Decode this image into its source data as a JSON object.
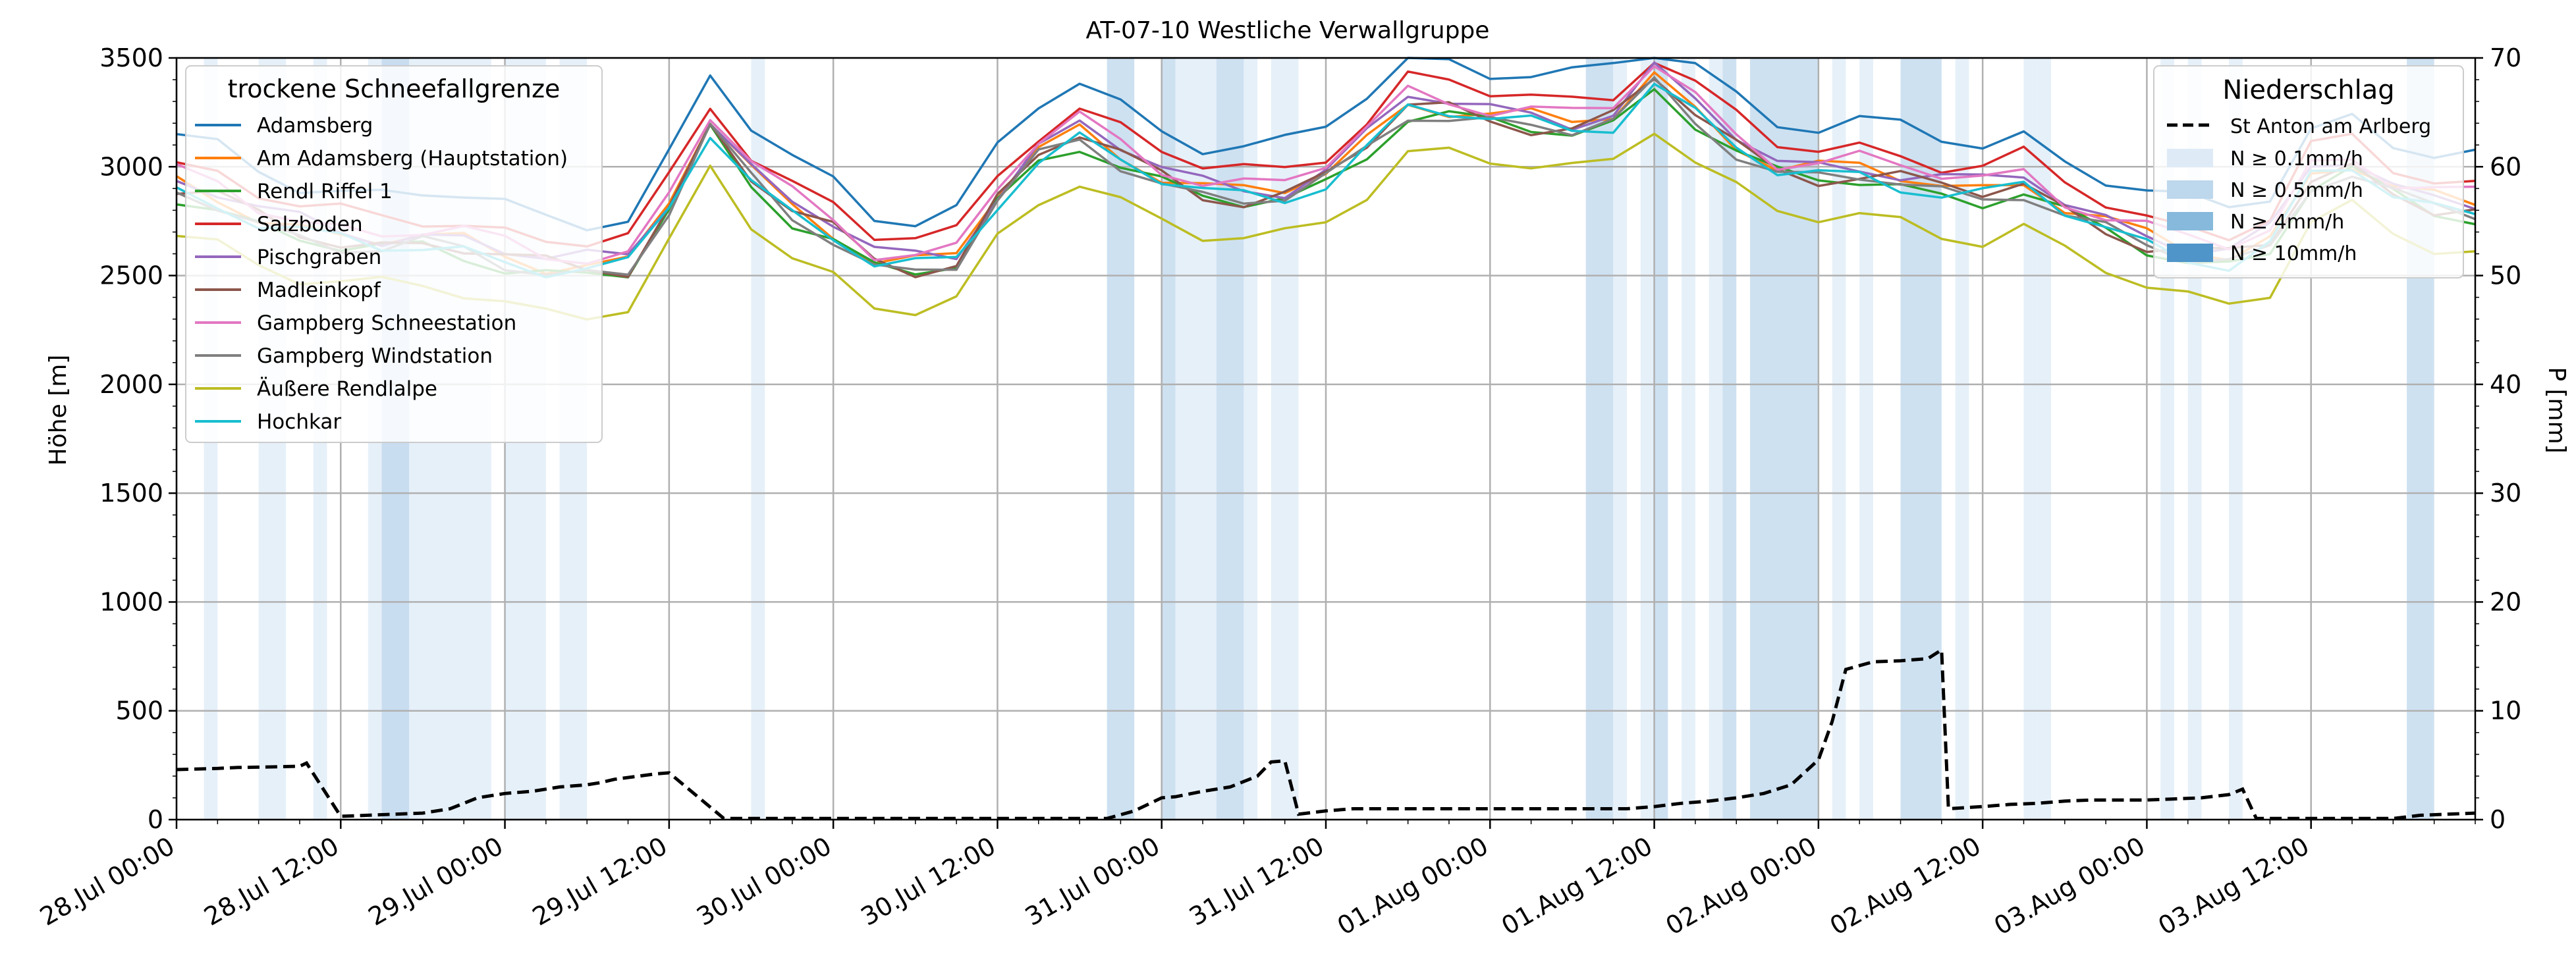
{
  "chart_data": {
    "type": "line",
    "title": "AT-07-10 Westliche Verwallgruppe",
    "ylabel": "Höhe [m]",
    "ylabel_right": "P [mm]",
    "xlabel": "",
    "xlim": [
      0,
      168
    ],
    "ylim": [
      0,
      3500
    ],
    "ylim_right": [
      0,
      70
    ],
    "grid": true,
    "y_ticks": [
      0,
      500,
      1000,
      1500,
      2000,
      2500,
      3000,
      3500
    ],
    "y_right_ticks": [
      0,
      10,
      20,
      30,
      40,
      50,
      60,
      70
    ],
    "x_ticks": [
      {
        "hour": 0,
        "label": "28.Jul 00:00"
      },
      {
        "hour": 12,
        "label": "28.Jul 12:00"
      },
      {
        "hour": 24,
        "label": "29.Jul 00:00"
      },
      {
        "hour": 36,
        "label": "29.Jul 12:00"
      },
      {
        "hour": 48,
        "label": "30.Jul 00:00"
      },
      {
        "hour": 60,
        "label": "30.Jul 12:00"
      },
      {
        "hour": 72,
        "label": "31.Jul 00:00"
      },
      {
        "hour": 84,
        "label": "31.Jul 12:00"
      },
      {
        "hour": 96,
        "label": "01.Aug 00:00"
      },
      {
        "hour": 108,
        "label": "01.Aug 12:00"
      },
      {
        "hour": 120,
        "label": "02.Aug 00:00"
      },
      {
        "hour": 132,
        "label": "02.Aug 12:00"
      },
      {
        "hour": 144,
        "label": "03.Aug 00:00"
      },
      {
        "hour": 156,
        "label": "03.Aug 12:00"
      }
    ],
    "legend_left": {
      "title": "trockene Schneefallgrenze",
      "position": "top-left"
    },
    "legend_right": {
      "title": "Niederschlag",
      "position": "top-right",
      "precip_label": "St Anton am Arlberg",
      "bands": [
        {
          "label": "N ≥ 0.1mm/h",
          "color": "#deebf7"
        },
        {
          "label": "N ≥ 0.5mm/h",
          "color": "#bdd7ec"
        },
        {
          "label": "N ≥ 4mm/h",
          "color": "#86b9db"
        },
        {
          "label": "N ≥ 10mm/h",
          "color": "#4f95c9"
        }
      ]
    },
    "base_series": {
      "hours": [
        0,
        3,
        6,
        9,
        12,
        15,
        18,
        21,
        24,
        27,
        30,
        33,
        36,
        39,
        42,
        45,
        48,
        51,
        54,
        57,
        60,
        63,
        66,
        69,
        72,
        75,
        78,
        81,
        84,
        87,
        90,
        93,
        96,
        99,
        102,
        105,
        108,
        111,
        114,
        117,
        120,
        123,
        126,
        129,
        132,
        135,
        138,
        141,
        144,
        147,
        150,
        153,
        156,
        159,
        162,
        165,
        168
      ],
      "values": [
        2900,
        2850,
        2760,
        2700,
        2660,
        2640,
        2650,
        2630,
        2580,
        2540,
        2530,
        2540,
        2820,
        3180,
        2950,
        2800,
        2700,
        2560,
        2540,
        2570,
        2850,
        3050,
        3150,
        3050,
        2950,
        2880,
        2860,
        2870,
        2950,
        3100,
        3280,
        3260,
        3220,
        3200,
        3180,
        3220,
        3400,
        3250,
        3100,
        2980,
        2960,
        2970,
        2940,
        2900,
        2880,
        2920,
        2800,
        2720,
        2650,
        2600,
        2580,
        2650,
        2950,
        3000,
        2880,
        2820,
        2800
      ]
    },
    "series": [
      {
        "name": "Adamsberg",
        "color": "#1f77b4",
        "offset": 230
      },
      {
        "name": "Am Adamsberg (Hauptstation)",
        "color": "#ff7f0e",
        "offset": 20
      },
      {
        "name": "Rendl Riffel 1",
        "color": "#2ca02c",
        "offset": -30
      },
      {
        "name": "Salzboden",
        "color": "#d62728",
        "offset": 120
      },
      {
        "name": "Pischgraben",
        "color": "#9467bd",
        "offset": 40
      },
      {
        "name": "Madleinkopf",
        "color": "#8c564b",
        "offset": 0
      },
      {
        "name": "Gampberg Schneestation",
        "color": "#e377c2",
        "offset": 60
      },
      {
        "name": "Gampberg Windstation",
        "color": "#7f7f7f",
        "offset": -20
      },
      {
        "name": "Äußere Rendlalpe",
        "color": "#bcbd22",
        "offset": -200
      },
      {
        "name": "Hochkar",
        "color": "#17becf",
        "offset": -10
      }
    ],
    "precipitation": {
      "hours": [
        0,
        3,
        4.5,
        5,
        9,
        9.5,
        12,
        14,
        16,
        18,
        20,
        22,
        24,
        26,
        28,
        30,
        31,
        32,
        35,
        36,
        40,
        48,
        56,
        64,
        68,
        70,
        72,
        73,
        75,
        77,
        79,
        80,
        81,
        82,
        84,
        86,
        88,
        96,
        104,
        106,
        108,
        110,
        112,
        114,
        116,
        118,
        120,
        121,
        122,
        124,
        126,
        128,
        129,
        129.5,
        132,
        134,
        136,
        138,
        140,
        142,
        144,
        146,
        148,
        150,
        151,
        152,
        158,
        162,
        164,
        168
      ],
      "values": [
        4.6,
        4.7,
        4.8,
        4.8,
        4.9,
        5.2,
        0.3,
        0.4,
        0.5,
        0.6,
        1.0,
        2.0,
        2.4,
        2.6,
        3.0,
        3.2,
        3.4,
        3.7,
        4.2,
        4.3,
        0.1,
        0.1,
        0.1,
        0.1,
        0.1,
        0.8,
        2.0,
        2.1,
        2.6,
        3.0,
        4.0,
        5.3,
        5.4,
        0.5,
        0.8,
        1.0,
        1.0,
        1.0,
        1.0,
        1.0,
        1.2,
        1.5,
        1.7,
        2.0,
        2.4,
        3.2,
        5.5,
        9.0,
        13.8,
        14.5,
        14.6,
        14.8,
        15.6,
        1.0,
        1.2,
        1.4,
        1.5,
        1.7,
        1.8,
        1.8,
        1.8,
        1.9,
        2.0,
        2.3,
        2.8,
        0.1,
        0.1,
        0.1,
        0.4,
        0.6
      ]
    },
    "precip_bands": [
      {
        "start": 2,
        "end": 3,
        "level": 1
      },
      {
        "start": 6,
        "end": 8,
        "level": 1
      },
      {
        "start": 10,
        "end": 11,
        "level": 1
      },
      {
        "start": 14,
        "end": 23,
        "level": 1
      },
      {
        "start": 15,
        "end": 17,
        "level": 2
      },
      {
        "start": 24,
        "end": 27,
        "level": 1
      },
      {
        "start": 28,
        "end": 30,
        "level": 1
      },
      {
        "start": 42,
        "end": 43,
        "level": 1
      },
      {
        "start": 68,
        "end": 70,
        "level": 2
      },
      {
        "start": 72,
        "end": 73,
        "level": 2
      },
      {
        "start": 73,
        "end": 76,
        "level": 1
      },
      {
        "start": 76,
        "end": 78,
        "level": 2
      },
      {
        "start": 78,
        "end": 79,
        "level": 1
      },
      {
        "start": 80,
        "end": 82,
        "level": 1
      },
      {
        "start": 103,
        "end": 105,
        "level": 2
      },
      {
        "start": 105,
        "end": 106,
        "level": 1
      },
      {
        "start": 107,
        "end": 108,
        "level": 1
      },
      {
        "start": 108,
        "end": 109,
        "level": 2
      },
      {
        "start": 110,
        "end": 111,
        "level": 1
      },
      {
        "start": 112,
        "end": 113,
        "level": 1
      },
      {
        "start": 113,
        "end": 114,
        "level": 2
      },
      {
        "start": 115,
        "end": 120,
        "level": 2
      },
      {
        "start": 121,
        "end": 122,
        "level": 1
      },
      {
        "start": 123,
        "end": 124,
        "level": 1
      },
      {
        "start": 126,
        "end": 129,
        "level": 2
      },
      {
        "start": 130,
        "end": 131,
        "level": 1
      },
      {
        "start": 135,
        "end": 136,
        "level": 1
      },
      {
        "start": 136,
        "end": 137,
        "level": 1
      },
      {
        "start": 145,
        "end": 146,
        "level": 1
      },
      {
        "start": 147,
        "end": 148,
        "level": 1
      },
      {
        "start": 150,
        "end": 151,
        "level": 1
      },
      {
        "start": 163,
        "end": 165,
        "level": 2
      }
    ]
  }
}
